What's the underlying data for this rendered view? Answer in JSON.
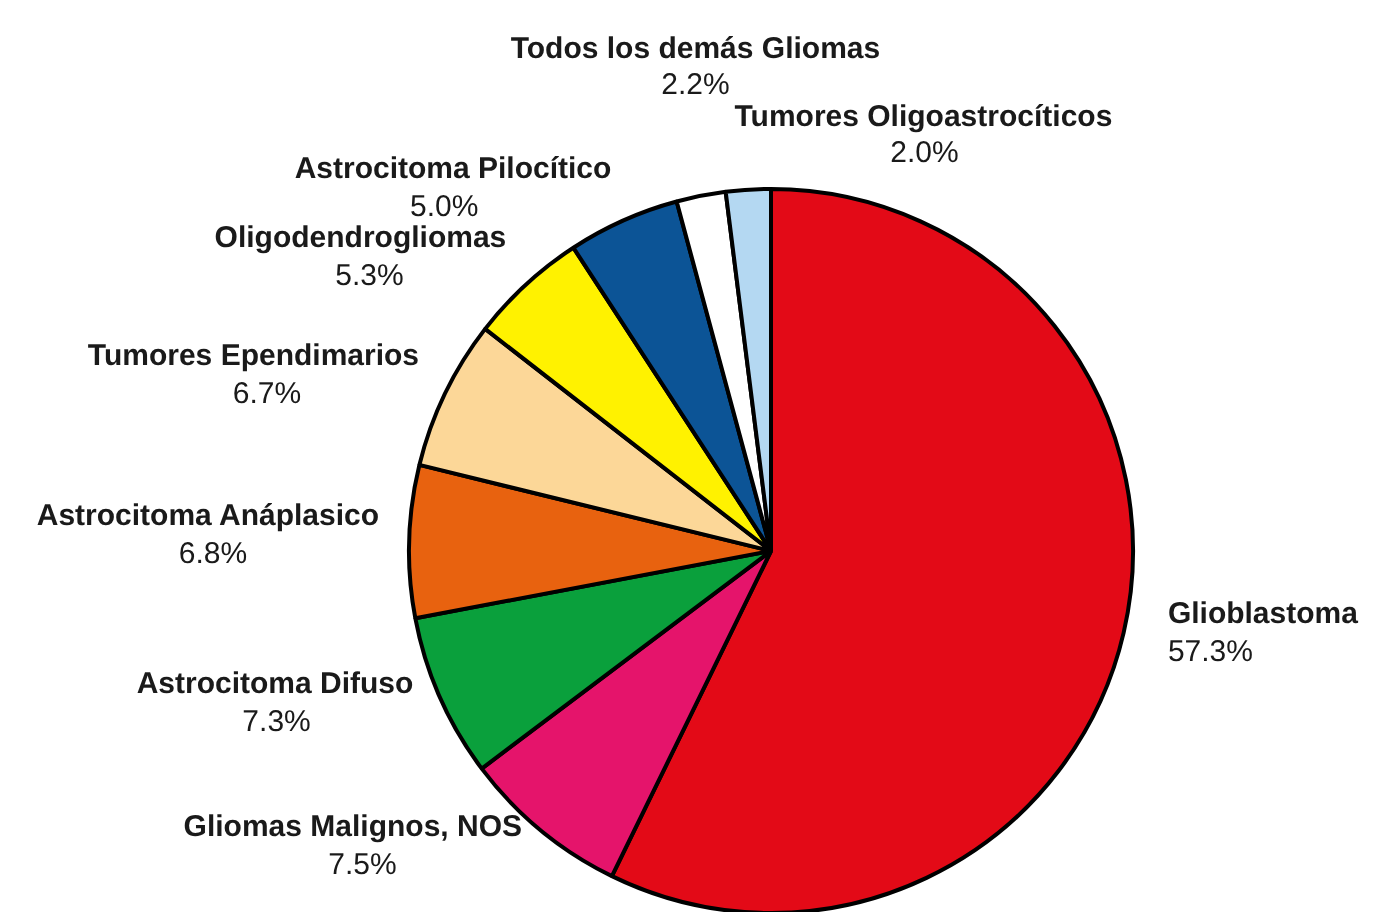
{
  "chart_data": {
    "type": "pie",
    "categories": [
      "Glioblastoma",
      "Gliomas Malignos, NOS",
      "Astrocitoma Difuso",
      "Astrocitoma Anáplasico",
      "Tumores Ependimarios",
      "Oligodendrogliomas",
      "Astrocitoma Pilocítico",
      "Todos los demás Gliomas",
      "Tumores Oligoastrocíticos"
    ],
    "values": [
      57.3,
      7.5,
      7.3,
      6.8,
      6.7,
      5.3,
      5.0,
      2.2,
      2.0
    ],
    "colors": [
      "#e30a17",
      "#e5146b",
      "#0aa03c",
      "#e8620f",
      "#fcd798",
      "#fff200",
      "#0c5496",
      "#ffffff",
      "#b4d8f2"
    ],
    "value_labels": [
      "57.3%",
      "7.5%",
      "7.3%",
      "6.8%",
      "6.7%",
      "5.3%",
      "5.0%",
      "2.2%",
      "2.0%"
    ]
  }
}
